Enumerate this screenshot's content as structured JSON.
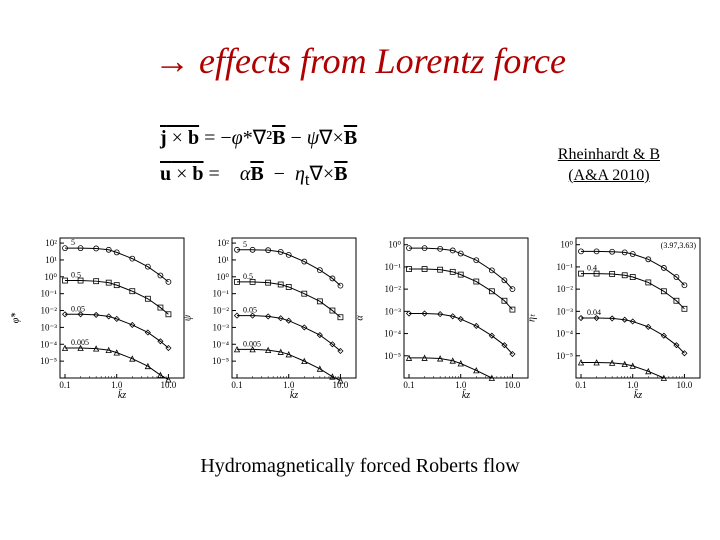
{
  "title_arrow": "→",
  "title_text": " effects from Lorentz force",
  "equation1": "j × b = −φ*∇²B − ψ∇×B",
  "equation2": "u × b =    αB  −  ηₜ∇×B",
  "citation_line1": "Rheinhardt & B",
  "citation_line2": "(A&A 2010)",
  "caption": "Hydromagnetically forced Roberts flow",
  "panels": {
    "width": 160,
    "height": 170,
    "bg": "#ffffff",
    "axis_color": "#000000",
    "grid_color": "#ffffff",
    "marker_stroke": "#000000",
    "line_stroke": "#000000",
    "xlabel": "k̄z",
    "xlim": [
      0.08,
      20
    ],
    "xticks": [
      0.1,
      1.0,
      10.0
    ],
    "xtick_labels": [
      "0.1",
      "1.0",
      "10.0"
    ],
    "font_size": 9,
    "list": [
      {
        "ylabel": "φ̃*",
        "ylim": [
          1e-06,
          200
        ],
        "yticks": [
          1e-05,
          0.0001,
          0.001,
          0.01,
          0.1,
          1,
          10,
          100
        ],
        "ytick_labels": [
          "10⁻⁵",
          "10⁻⁴",
          "10⁻³",
          "10⁻²",
          "10⁻¹",
          "10⁰",
          "10¹",
          "10²"
        ],
        "curve_labels": [
          "5",
          "0.5",
          "0.05",
          "0.005"
        ],
        "series": [
          {
            "marker": "circle",
            "label": "5",
            "data": [
              [
                0.1,
                50
              ],
              [
                0.2,
                50
              ],
              [
                0.4,
                48
              ],
              [
                0.7,
                40
              ],
              [
                1.0,
                28
              ],
              [
                2.0,
                12
              ],
              [
                4.0,
                4
              ],
              [
                7.0,
                1.2
              ],
              [
                10,
                0.5
              ]
            ]
          },
          {
            "marker": "square",
            "label": "0.5",
            "data": [
              [
                0.1,
                0.6
              ],
              [
                0.2,
                0.6
              ],
              [
                0.4,
                0.55
              ],
              [
                0.7,
                0.45
              ],
              [
                1.0,
                0.32
              ],
              [
                2.0,
                0.14
              ],
              [
                4.0,
                0.05
              ],
              [
                7.0,
                0.015
              ],
              [
                10,
                0.006
              ]
            ]
          },
          {
            "marker": "diamond",
            "label": "0.05",
            "data": [
              [
                0.1,
                0.006
              ],
              [
                0.2,
                0.006
              ],
              [
                0.4,
                0.0055
              ],
              [
                0.7,
                0.0045
              ],
              [
                1.0,
                0.0032
              ],
              [
                2.0,
                0.0014
              ],
              [
                4.0,
                0.0005
              ],
              [
                7.0,
                0.00015
              ],
              [
                10,
                6e-05
              ]
            ]
          },
          {
            "marker": "triangle",
            "label": "0.005",
            "data": [
              [
                0.1,
                6e-05
              ],
              [
                0.2,
                6e-05
              ],
              [
                0.4,
                5.5e-05
              ],
              [
                0.7,
                4.5e-05
              ],
              [
                1.0,
                3.2e-05
              ],
              [
                2.0,
                1.4e-05
              ],
              [
                4.0,
                5e-06
              ],
              [
                7.0,
                1.5e-06
              ],
              [
                10,
                8e-07
              ]
            ]
          }
        ]
      },
      {
        "ylabel": "ψ̃",
        "ylim": [
          1e-06,
          200
        ],
        "yticks": [
          1e-05,
          0.0001,
          0.001,
          0.01,
          0.1,
          1,
          10,
          100
        ],
        "ytick_labels": [
          "10⁻⁵",
          "10⁻⁴",
          "10⁻³",
          "10⁻²",
          "10⁻¹",
          "10⁰",
          "10¹",
          "10²"
        ],
        "curve_labels": [
          "5",
          "0.5",
          "0.05",
          "0.005"
        ],
        "series": [
          {
            "marker": "circle",
            "label": "5",
            "data": [
              [
                0.1,
                40
              ],
              [
                0.2,
                40
              ],
              [
                0.4,
                38
              ],
              [
                0.7,
                30
              ],
              [
                1.0,
                20
              ],
              [
                2.0,
                8
              ],
              [
                4.0,
                2.5
              ],
              [
                7.0,
                0.8
              ],
              [
                10,
                0.3
              ]
            ]
          },
          {
            "marker": "square",
            "label": "0.5",
            "data": [
              [
                0.1,
                0.5
              ],
              [
                0.2,
                0.5
              ],
              [
                0.4,
                0.45
              ],
              [
                0.7,
                0.35
              ],
              [
                1.0,
                0.25
              ],
              [
                2.0,
                0.1
              ],
              [
                4.0,
                0.035
              ],
              [
                7.0,
                0.01
              ],
              [
                10,
                0.004
              ]
            ]
          },
          {
            "marker": "diamond",
            "label": "0.05",
            "data": [
              [
                0.1,
                0.005
              ],
              [
                0.2,
                0.005
              ],
              [
                0.4,
                0.0045
              ],
              [
                0.7,
                0.0035
              ],
              [
                1.0,
                0.0025
              ],
              [
                2.0,
                0.001
              ],
              [
                4.0,
                0.00035
              ],
              [
                7.0,
                0.0001
              ],
              [
                10,
                4e-05
              ]
            ]
          },
          {
            "marker": "triangle",
            "label": "0.005",
            "data": [
              [
                0.1,
                5e-05
              ],
              [
                0.2,
                5e-05
              ],
              [
                0.4,
                4.5e-05
              ],
              [
                0.7,
                3.5e-05
              ],
              [
                1.0,
                2.5e-05
              ],
              [
                2.0,
                1e-05
              ],
              [
                4.0,
                3.5e-06
              ],
              [
                7.0,
                1.2e-06
              ],
              [
                10,
                7e-07
              ]
            ]
          }
        ]
      },
      {
        "ylabel": "α̃",
        "ylim": [
          1e-06,
          2
        ],
        "yticks": [
          1e-05,
          0.0001,
          0.001,
          0.01,
          0.1,
          1
        ],
        "ytick_labels": [
          "10⁻⁵",
          "10⁻⁴",
          "10⁻³",
          "10⁻²",
          "10⁻¹",
          "10⁰"
        ],
        "curve_labels": [
          "",
          "",
          "",
          ""
        ],
        "series": [
          {
            "marker": "circle",
            "data": [
              [
                0.1,
                0.7
              ],
              [
                0.2,
                0.7
              ],
              [
                0.4,
                0.65
              ],
              [
                0.7,
                0.55
              ],
              [
                1.0,
                0.4
              ],
              [
                2.0,
                0.2
              ],
              [
                4.0,
                0.07
              ],
              [
                7.0,
                0.025
              ],
              [
                10,
                0.01
              ]
            ]
          },
          {
            "marker": "square",
            "data": [
              [
                0.1,
                0.08
              ],
              [
                0.2,
                0.08
              ],
              [
                0.4,
                0.075
              ],
              [
                0.7,
                0.06
              ],
              [
                1.0,
                0.045
              ],
              [
                2.0,
                0.022
              ],
              [
                4.0,
                0.008
              ],
              [
                7.0,
                0.003
              ],
              [
                10,
                0.0012
              ]
            ]
          },
          {
            "marker": "diamond",
            "data": [
              [
                0.1,
                0.0008
              ],
              [
                0.2,
                0.0008
              ],
              [
                0.4,
                0.00075
              ],
              [
                0.7,
                0.0006
              ],
              [
                1.0,
                0.00045
              ],
              [
                2.0,
                0.00022
              ],
              [
                4.0,
                8e-05
              ],
              [
                7.0,
                3e-05
              ],
              [
                10,
                1.2e-05
              ]
            ]
          },
          {
            "marker": "triangle",
            "data": [
              [
                0.1,
                8e-06
              ],
              [
                0.2,
                8e-06
              ],
              [
                0.4,
                7.5e-06
              ],
              [
                0.7,
                6e-06
              ],
              [
                1.0,
                4.5e-06
              ],
              [
                2.0,
                2.2e-06
              ],
              [
                4.0,
                1e-06
              ]
            ]
          }
        ]
      },
      {
        "ylabel": "η̃ₜ",
        "ylim": [
          1e-06,
          2
        ],
        "yticks": [
          1e-05,
          0.0001,
          0.001,
          0.01,
          0.1,
          1
        ],
        "ytick_labels": [
          "10⁻⁵",
          "10⁻⁴",
          "10⁻³",
          "10⁻²",
          "10⁻¹",
          "10⁰"
        ],
        "top_label": "(3.97,3.63)",
        "curve_labels": [
          "",
          "0.4",
          "0.04",
          ""
        ],
        "series": [
          {
            "marker": "circle",
            "data": [
              [
                0.1,
                0.5
              ],
              [
                0.2,
                0.5
              ],
              [
                0.4,
                0.48
              ],
              [
                0.7,
                0.45
              ],
              [
                1.0,
                0.38
              ],
              [
                2.0,
                0.22
              ],
              [
                4.0,
                0.09
              ],
              [
                7.0,
                0.035
              ],
              [
                10,
                0.015
              ]
            ]
          },
          {
            "marker": "square",
            "label": "0.4",
            "data": [
              [
                0.1,
                0.05
              ],
              [
                0.2,
                0.05
              ],
              [
                0.4,
                0.048
              ],
              [
                0.7,
                0.042
              ],
              [
                1.0,
                0.035
              ],
              [
                2.0,
                0.02
              ],
              [
                4.0,
                0.008
              ],
              [
                7.0,
                0.003
              ],
              [
                10,
                0.0013
              ]
            ]
          },
          {
            "marker": "diamond",
            "label": "0.04",
            "data": [
              [
                0.1,
                0.0005
              ],
              [
                0.2,
                0.0005
              ],
              [
                0.4,
                0.00048
              ],
              [
                0.7,
                0.00042
              ],
              [
                1.0,
                0.00035
              ],
              [
                2.0,
                0.0002
              ],
              [
                4.0,
                8e-05
              ],
              [
                7.0,
                3e-05
              ],
              [
                10,
                1.3e-05
              ]
            ]
          },
          {
            "marker": "triangle",
            "data": [
              [
                0.1,
                5e-06
              ],
              [
                0.2,
                5e-06
              ],
              [
                0.4,
                4.8e-06
              ],
              [
                0.7,
                4.2e-06
              ],
              [
                1.0,
                3.5e-06
              ],
              [
                2.0,
                2e-06
              ],
              [
                4.0,
                1e-06
              ]
            ]
          }
        ]
      }
    ]
  }
}
